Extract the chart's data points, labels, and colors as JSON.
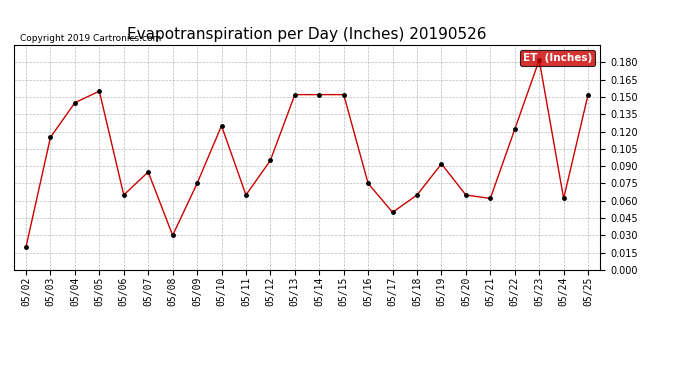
{
  "title": "Evapotranspiration per Day (Inches) 20190526",
  "copyright": "Copyright 2019 Cartronics.com",
  "legend_label": "ET  (Inches)",
  "dates": [
    "05/02",
    "05/03",
    "05/04",
    "05/05",
    "05/06",
    "05/07",
    "05/08",
    "05/09",
    "05/10",
    "05/11",
    "05/12",
    "05/13",
    "05/14",
    "05/15",
    "05/16",
    "05/17",
    "05/18",
    "05/19",
    "05/20",
    "05/21",
    "05/22",
    "05/23",
    "05/24",
    "05/25"
  ],
  "values": [
    0.02,
    0.115,
    0.145,
    0.155,
    0.065,
    0.085,
    0.03,
    0.075,
    0.125,
    0.065,
    0.095,
    0.152,
    0.152,
    0.152,
    0.075,
    0.05,
    0.065,
    0.092,
    0.065,
    0.062,
    0.122,
    0.182,
    0.062,
    0.152
  ],
  "line_color": "#cc0000",
  "marker_color": "#000000",
  "bg_color": "#ffffff",
  "grid_color": "#aaaaaa",
  "ylim": [
    0.0,
    0.195
  ],
  "yticks": [
    0.0,
    0.015,
    0.03,
    0.045,
    0.06,
    0.075,
    0.09,
    0.105,
    0.12,
    0.135,
    0.15,
    0.165,
    0.18
  ],
  "title_fontsize": 11,
  "copyright_fontsize": 6.5,
  "tick_fontsize": 7,
  "legend_bg": "#cc0000",
  "legend_text_color": "#ffffff",
  "legend_fontsize": 7.5
}
